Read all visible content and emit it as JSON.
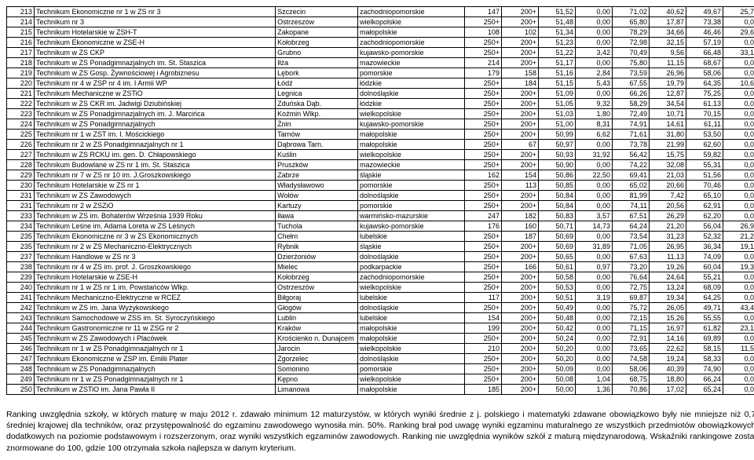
{
  "table": {
    "columns": [
      {
        "class": "col-num"
      },
      {
        "class": "col-name"
      },
      {
        "class": "col-city"
      },
      {
        "class": "col-region"
      },
      {
        "class": "col-val"
      },
      {
        "class": "col-val"
      },
      {
        "class": "col-val"
      },
      {
        "class": "col-val"
      },
      {
        "class": "col-val"
      },
      {
        "class": "col-val"
      },
      {
        "class": "col-val"
      },
      {
        "class": "col-val"
      }
    ],
    "rows": [
      [
        "213",
        "Technikum Ekonomiczne nr 1 w ZS nr 3",
        "Szczecin",
        "zachodniopomorskie",
        "147",
        "200+",
        "51,52",
        "0,00",
        "71,02",
        "40,62",
        "49,67",
        "25,72"
      ],
      [
        "214",
        "Technikum nr 3",
        "Ostrzeszów",
        "wielkopolskie",
        "250+",
        "200+",
        "51,48",
        "0,00",
        "65,80",
        "17,87",
        "73,38",
        "0,00"
      ],
      [
        "215",
        "Technikum Hotelarskie w ZSH-T",
        "Zakopane",
        "małopolskie",
        "108",
        "102",
        "51,34",
        "0,00",
        "78,29",
        "34,66",
        "46,46",
        "29,60"
      ],
      [
        "216",
        "Technikum Ekonomiczne w ZSE-H",
        "Kołobrzeg",
        "zachodniopomorskie",
        "250+",
        "200+",
        "51,23",
        "0,00",
        "72,98",
        "32,15",
        "57,19",
        "0,00"
      ],
      [
        "217",
        "Technikum w ZS CKP",
        "Grubno",
        "kujawsko-pomorskie",
        "250+",
        "200+",
        "51,22",
        "3,42",
        "70,49",
        "9,56",
        "66,48",
        "33,19"
      ],
      [
        "218",
        "Technikum w ZS Ponadgimnazjalnych im. St. Staszica",
        "Iłża",
        "mazowieckie",
        "214",
        "200+",
        "51,17",
        "0,00",
        "75,80",
        "11,15",
        "68,67",
        "0,00"
      ],
      [
        "219",
        "Technikum w ZS Gosp. Żywnościowej i Agrobiznesu",
        "Lębork",
        "pomorskie",
        "179",
        "158",
        "51,16",
        "2,84",
        "73,59",
        "26,96",
        "58,06",
        "0,00"
      ],
      [
        "220",
        "Technikum nr 4 w ZSP nr 4 im. I Armii WP",
        "Łódź",
        "łódzkie",
        "250+",
        "184",
        "51,15",
        "5,43",
        "67,55",
        "19,79",
        "64,35",
        "10,69"
      ],
      [
        "221",
        "Technikum Mechaniczne w ZSTiO",
        "Legnica",
        "dolnośląskie",
        "250+",
        "200+",
        "51,09",
        "0,00",
        "66,26",
        "12,87",
        "75,25",
        "0,00"
      ],
      [
        "222",
        "Technikum w ZS CKR im. Jadwigi Dziubińskiej",
        "Zduńska Dąb.",
        "łódzkie",
        "250+",
        "200+",
        "51,05",
        "9,32",
        "58,29",
        "34,54",
        "61,13",
        "0,00"
      ],
      [
        "223",
        "Technikum w ZS Ponadgimnazjalnych im. J. Marcińca",
        "Koźmin Wlkp.",
        "wielkopolskie",
        "250+",
        "200+",
        "51,03",
        "1,80",
        "72,49",
        "10,71",
        "70,15",
        "0,00"
      ],
      [
        "224",
        "Technikum w ZS Ponadgimnazjalnych",
        "Żnin",
        "kujawsko-pomorskie",
        "250+",
        "200+",
        "51,00",
        "8,31",
        "74,91",
        "14,61",
        "61,11",
        "0,00"
      ],
      [
        "225",
        "Technikum nr 1 w ZST im. I. Mościckiego",
        "Tarnów",
        "małopolskie",
        "250+",
        "200+",
        "50,99",
        "6,62",
        "71,61",
        "31,80",
        "53,50",
        "0,00"
      ],
      [
        "226",
        "Technikum nr 2 w ZS Ponadgimnazjalnych nr 1",
        "Dąbrowa Tarn.",
        "małopolskie",
        "250+",
        "67",
        "50,97",
        "0,00",
        "73,78",
        "21,99",
        "62,60",
        "0,00"
      ],
      [
        "227",
        "Technikum w ZS RCKU im. gen. D. Chłapowskiego",
        "Kuślin",
        "wielkopolskie",
        "250+",
        "200+",
        "50,93",
        "31,92",
        "56,42",
        "15,75",
        "59,82",
        "0,00"
      ],
      [
        "228",
        "Technikum Budowlane w ZS nr 1 im. St. Staszica",
        "Pruszków",
        "mazowieckie",
        "250+",
        "200+",
        "50,90",
        "0,00",
        "74,22",
        "32,08",
        "55,31",
        "0,00"
      ],
      [
        "229",
        "Technikum nr 7 w ZS nr 10 im. J.Groszkowskiego",
        "Zabrze",
        "śląskie",
        "162",
        "154",
        "50,86",
        "22,50",
        "69,41",
        "21,03",
        "51,56",
        "0,00"
      ],
      [
        "230",
        "Technikum Hotelarskie w ZS nr 1",
        "Władysławowo",
        "pomorskie",
        "250+",
        "113",
        "50,85",
        "0,00",
        "65,02",
        "20,66",
        "70,46",
        "0,00"
      ],
      [
        "231",
        "Technikum w ZS Zawodowych",
        "Wołów",
        "dolnośląskie",
        "250+",
        "200+",
        "50,84",
        "0,00",
        "81,99",
        "7,42",
        "65,10",
        "0,00"
      ],
      [
        "231",
        "Technikum nr 2 w ZSZiO",
        "Kartuzy",
        "pomorskie",
        "250+",
        "200+",
        "50,84",
        "0,00",
        "74,11",
        "20,56",
        "62,91",
        "0,00"
      ],
      [
        "233",
        "Technikum w ZS im. Bohaterów Września 1939 Roku",
        "Iława",
        "warmińsko-mazurskie",
        "247",
        "182",
        "50,83",
        "3,57",
        "67,51",
        "26,29",
        "62,20",
        "0,00"
      ],
      [
        "234",
        "Technikum Leśne im. Adama Loreta w ZS Leśnych",
        "Tuchola",
        "kujawsko-pomorskie",
        "176",
        "160",
        "50,71",
        "14,73",
        "64,24",
        "21,20",
        "56,04",
        "26,94"
      ],
      [
        "235",
        "Technikum Ekonomiczne nr 3 w ZS Ekonomicznych",
        "Chełm",
        "lubelskie",
        "250+",
        "187",
        "50,69",
        "0,00",
        "73,54",
        "31,23",
        "52,32",
        "21,21"
      ],
      [
        "235",
        "Technikum nr 2 w ZS Mechaniczno-Elektrycznych",
        "Rybnik",
        "śląskie",
        "250+",
        "200+",
        "50,69",
        "31,89",
        "71,05",
        "26,95",
        "36,34",
        "19,16"
      ],
      [
        "237",
        "Technikum Handlowe w ZS nr 3",
        "Dzierżoniów",
        "dolnośląskie",
        "250+",
        "200+",
        "50,65",
        "0,00",
        "67,63",
        "11,13",
        "74,09",
        "0,00"
      ],
      [
        "238",
        "Technikum nr 4 w ZS im. prof. J. Groszkowskiego",
        "Mielec",
        "podkarpackie",
        "250+",
        "166",
        "50,61",
        "0,97",
        "73,20",
        "19,26",
        "60,04",
        "19,32"
      ],
      [
        "239",
        "Technikum Hotelarskie w ZSE-H",
        "Kołobrzeg",
        "zachodniopomorskie",
        "250+",
        "200+",
        "50,58",
        "0,00",
        "76,64",
        "24,64",
        "55,21",
        "0,00"
      ],
      [
        "240",
        "Technikum nr 1 w ZS nr 1 im. Powstańców Wlkp.",
        "Ostrzeszów",
        "wielkopolskie",
        "250+",
        "200+",
        "50,53",
        "0,00",
        "72,75",
        "13,24",
        "68,09",
        "0,00"
      ],
      [
        "241",
        "Technikum Mechaniczno-Elektryczne w RCEZ",
        "Biłgoraj",
        "lubelskie",
        "117",
        "200+",
        "50,51",
        "3,19",
        "69,87",
        "19,34",
        "64,25",
        "0,00"
      ],
      [
        "242",
        "Technikum w ZS im. Jana Wyżykowskiego",
        "Głogów",
        "dolnośląskie",
        "250+",
        "200+",
        "50,49",
        "0,00",
        "75,72",
        "26,05",
        "49,71",
        "43,46"
      ],
      [
        "243",
        "Technikum Samochodowe w ZSS im. St. Syroczyńskiego",
        "Lublin",
        "lubelskie",
        "154",
        "200+",
        "50,48",
        "0,00",
        "72,15",
        "15,26",
        "55,55",
        "0,00"
      ],
      [
        "244",
        "Technikum Gastronomiczne nr 11 w ZSG nr 2",
        "Kraków",
        "małopolskie",
        "199",
        "200+",
        "50,42",
        "0,00",
        "71,15",
        "16,97",
        "61,82",
        "23,16"
      ],
      [
        "245",
        "Technikum w ZS Zawodowych i Placówek",
        "Krościenko n. Dunajcem",
        "małopolskie",
        "250+",
        "200+",
        "50,24",
        "0,00",
        "72,91",
        "14,16",
        "69,89",
        "0,00"
      ],
      [
        "246",
        "Technikum nr 1 w ZS Ponadgimnazjalnych nr 1",
        "Jarocin",
        "wielkopolskie",
        "210",
        "200+",
        "50,20",
        "0,00",
        "73,65",
        "22,62",
        "58,15",
        "11,52"
      ],
      [
        "247",
        "Technikum Ekonomiczne w ZSP im. Emilii Plater",
        "Zgorzelec",
        "dolnośląskie",
        "250+",
        "200+",
        "50,20",
        "0,00",
        "74,58",
        "19,24",
        "58,33",
        "0,00"
      ],
      [
        "248",
        "Technikum w ZS Ponadgimnazjalnych",
        "Somonino",
        "pomorskie",
        "250+",
        "200+",
        "50,09",
        "0,00",
        "58,06",
        "40,39",
        "74,90",
        "0,00"
      ],
      [
        "249",
        "Technikum nr 1 w ZS Ponadgimnazjalnych nr 1",
        "Kępno",
        "wielkopolskie",
        "250+",
        "200+",
        "50,08",
        "1,04",
        "68,75",
        "18,80",
        "66,24",
        "0,00"
      ],
      [
        "250",
        "Technikum w ZSTiO im. Jana Pawła II",
        "Limanowa",
        "małopolskie",
        "185",
        "200+",
        "50,00",
        "1,36",
        "70,86",
        "17,02",
        "65,24",
        "0,00"
      ]
    ]
  },
  "footer": {
    "p1": "Ranking uwzględnia szkoły, w których maturę w maju 2012 r. zdawało minimum 12 maturzystów, w których wyniki średnie z j. polskiego i matematyki zdawane obowiązkowo były nie mniejsze niż 0,75 średniej krajowej dla techników, oraz przystępowalność do egzaminu zawodowego wynosiła min. 50%. Ranking brał pod uwagę wyniki egzaminu maturalnego ze wszystkich przedmiotów obowiązkowych i dodatkowych na poziomie podstawowym i rozszerzonym, oraz wyniki wszystkich egzaminów zawodowych. Ranking nie uwzględnia wyników szkół z maturą międzynarodową. Wskaźniki rankingowe zostały znormowane do 100, gdzie 100 otrzymała szkoła najlepsza w danym kryterium."
  }
}
